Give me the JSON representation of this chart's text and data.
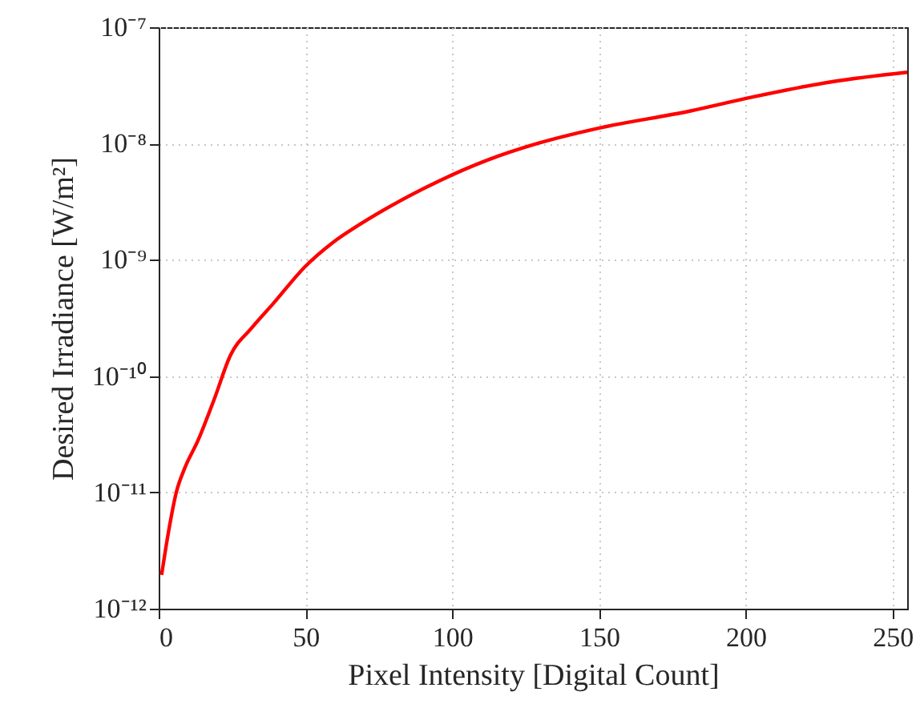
{
  "chart_data": {
    "type": "line",
    "xlabel": "Pixel Intensity [Digital Count]",
    "ylabel": "Desired Irradiance [W/m²]",
    "x": [
      1,
      3.3,
      6,
      8.8,
      13.4,
      18.9,
      24.4,
      31.7,
      39,
      50,
      59.2,
      68.3,
      81.1,
      95.8,
      112,
      129,
      150.7,
      180.9,
      202,
      229.5,
      255
    ],
    "series": [
      {
        "color": "#ff0000",
        "values": [
          1.95e-12,
          4.5e-12,
          1e-11,
          1.6e-11,
          2.8e-11,
          6.3e-11,
          1.5e-10,
          2.6e-10,
          4.2e-10,
          8.8e-10,
          1.4e-09,
          2e-09,
          3.1e-09,
          4.8e-09,
          7.2e-09,
          1e-08,
          1.37e-08,
          1.9e-08,
          2.5e-08,
          3.4e-08,
          4.1e-08
        ]
      }
    ],
    "xlim": [
      0,
      255
    ],
    "xticks": [
      0,
      50,
      100,
      150,
      200,
      250
    ],
    "ylim": [
      1e-12,
      1e-07
    ],
    "yticks": [
      {
        "value": 1e-12,
        "label": "10⁻¹²"
      },
      {
        "value": 1e-11,
        "label": "10⁻¹¹"
      },
      {
        "value": 1e-10,
        "label": "10⁻¹⁰"
      },
      {
        "value": 1e-09,
        "label": "10⁻⁹"
      },
      {
        "value": 1e-08,
        "label": "10⁻⁸"
      },
      {
        "value": 1e-07,
        "label": "10⁻⁷"
      }
    ],
    "log": "y",
    "grid": true,
    "line_style": "solid",
    "marker": "none"
  }
}
